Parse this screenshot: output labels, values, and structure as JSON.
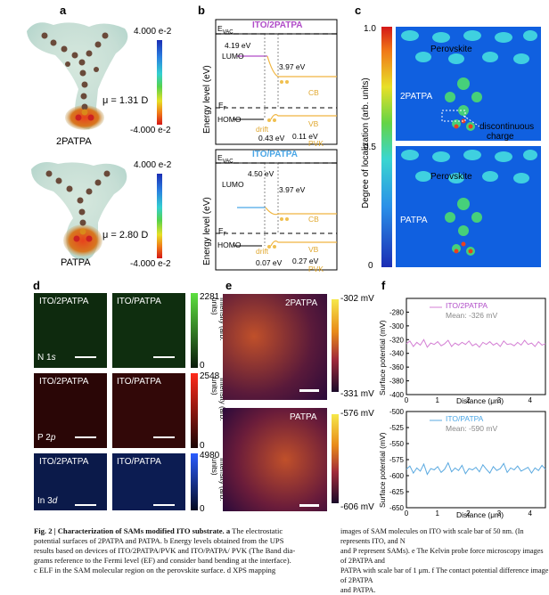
{
  "panel_labels": {
    "a": "a",
    "b": "b",
    "c": "c",
    "d": "d",
    "e": "e",
    "f": "f"
  },
  "panel_a": {
    "top": {
      "name": "2PATPA",
      "dipole": "μ = 1.31 D"
    },
    "bottom": {
      "name": "PATPA",
      "dipole": "μ = 2.80 D"
    },
    "colorbar": {
      "max": "4.000 e-2",
      "min": "-4.000 e-2"
    }
  },
  "panel_b": {
    "ylabel": "Energy level (eV)",
    "top": {
      "title": "ITO/2PATPA",
      "evac": "E",
      "evac_sub": "VAC",
      "lumo": "LUMO",
      "homo": "HOMO",
      "ef": "E",
      "ef_sub": "F",
      "v1": "4.19 eV",
      "v2": "3.97 eV",
      "v3": "0.43 eV",
      "v4": "0.11 eV",
      "cb": "CB",
      "vb": "VB",
      "pvk": "PVK",
      "drift": "drift"
    },
    "bottom": {
      "title": "ITO/PATPA",
      "evac": "E",
      "evac_sub": "VAC",
      "lumo": "LUMO",
      "homo": "HOMO",
      "ef": "E",
      "ef_sub": "F",
      "v1": "4.50 eV",
      "v2": "3.97 eV",
      "v3": "0.07 eV",
      "v4": "0.27 eV",
      "cb": "CB",
      "vb": "VB",
      "pvk": "PVK",
      "drift": "drift"
    }
  },
  "panel_c": {
    "ylabel": "Degree of localization (arb. units)",
    "ticks": [
      "1.0",
      "0.5",
      "0"
    ],
    "top": {
      "perovskite": "Perovskite",
      "sam": "2PATPA",
      "note1": "discontinuous",
      "note2": "charge"
    },
    "bottom": {
      "perovskite": "Perovskite",
      "sam": "PATPA"
    }
  },
  "panel_d": {
    "rows": [
      {
        "left": "ITO/2PATPA",
        "right": "ITO/PATPA",
        "element": "N 1",
        "element_sub": "s",
        "max": "2281",
        "min": "0",
        "color": "#2a8a1e"
      },
      {
        "left": "ITO/2PATPA",
        "right": "ITO/PATPA",
        "element": "P 2",
        "element_sub": "p",
        "max": "2548",
        "min": "0",
        "color": "#b3190f"
      },
      {
        "left": "ITO/2PATPA",
        "right": "ITO/PATPA",
        "element": "In 3",
        "element_sub": "d",
        "max": "4980",
        "min": "0",
        "color": "#1a3fcc"
      }
    ],
    "cbar_label": "Intensity (arb. units)"
  },
  "panel_e": {
    "top": {
      "name": "2PATPA",
      "max": "-302 mV",
      "min": "-331 mV"
    },
    "bottom": {
      "name": "PATPA",
      "max": "-576 mV",
      "min": "-606 mV"
    }
  },
  "chart_data": [
    {
      "type": "line",
      "legend": "ITO/2PATPA",
      "note": "Mean: -326 mV",
      "xlabel": "Distance (μm)",
      "ylabel": "Surface potential (mV)",
      "xlim": [
        0,
        4.5
      ],
      "ylim": [
        -400,
        -260
      ],
      "yticks": [
        -280,
        -300,
        -320,
        -340,
        -360,
        -380,
        -400
      ],
      "xticks": [
        0,
        1,
        2,
        3,
        4
      ],
      "series": [
        {
          "color": "#d47fd4",
          "values": [
            -326,
            -322,
            -330,
            -324,
            -328,
            -320,
            -331,
            -325,
            -327,
            -323,
            -329,
            -326,
            -321,
            -330,
            -325,
            -328,
            -324,
            -327,
            -322,
            -329,
            -326,
            -331,
            -324,
            -327,
            -323,
            -328,
            -325,
            -330,
            -322,
            -327,
            -326,
            -329,
            -324,
            -328,
            -321,
            -327,
            -325,
            -330,
            -323,
            -328,
            -326
          ]
        }
      ]
    },
    {
      "type": "line",
      "legend": "ITO/PATPA",
      "note": "Mean: -590 mV",
      "xlabel": "Distance (μm)",
      "ylabel": "Surface potential (mV)",
      "xlim": [
        0,
        4.5
      ],
      "ylim": [
        -650,
        -500
      ],
      "yticks": [
        -500,
        -525,
        -550,
        -575,
        -600,
        -625,
        -650
      ],
      "xticks": [
        0,
        1,
        2,
        3,
        4
      ],
      "series": [
        {
          "color": "#5aa9e0",
          "values": [
            -590,
            -585,
            -596,
            -588,
            -593,
            -582,
            -598,
            -589,
            -591,
            -586,
            -595,
            -590,
            -580,
            -594,
            -588,
            -592,
            -584,
            -597,
            -589,
            -591,
            -587,
            -594,
            -583,
            -590,
            -596,
            -586,
            -592,
            -589,
            -581,
            -595,
            -588,
            -591,
            -585,
            -593,
            -590,
            -587,
            -596,
            -588,
            -592,
            -584,
            -590
          ]
        }
      ]
    }
  ],
  "caption": {
    "bold": "Fig. 2 | Characterization of SAMs modified ITO substrate. a",
    "left": [
      " The electrostatic",
      "potential surfaces of 2PATPA and PATPA. b Energy levels obtained from the UPS",
      "results based on devices of ITO/2PATPA/PVK and ITO/PATPA/ PVK (The Band dia-",
      "grams reference to the Fermi level (EF) and consider band bending at the interface).",
      "c ELF in the SAM molecular region on the perovskite surface. d XPS mapping"
    ],
    "right": [
      "images of SAM molecules on ITO with scale bar of 50 nm. (In represents ITO, and N",
      "and P represent SAMs). e The Kelvin probe force microscopy images of 2PATPA and",
      "PATPA with scale bar of 1 μm. f The contact potential difference image of 2PATPA",
      "and PATPA."
    ]
  }
}
